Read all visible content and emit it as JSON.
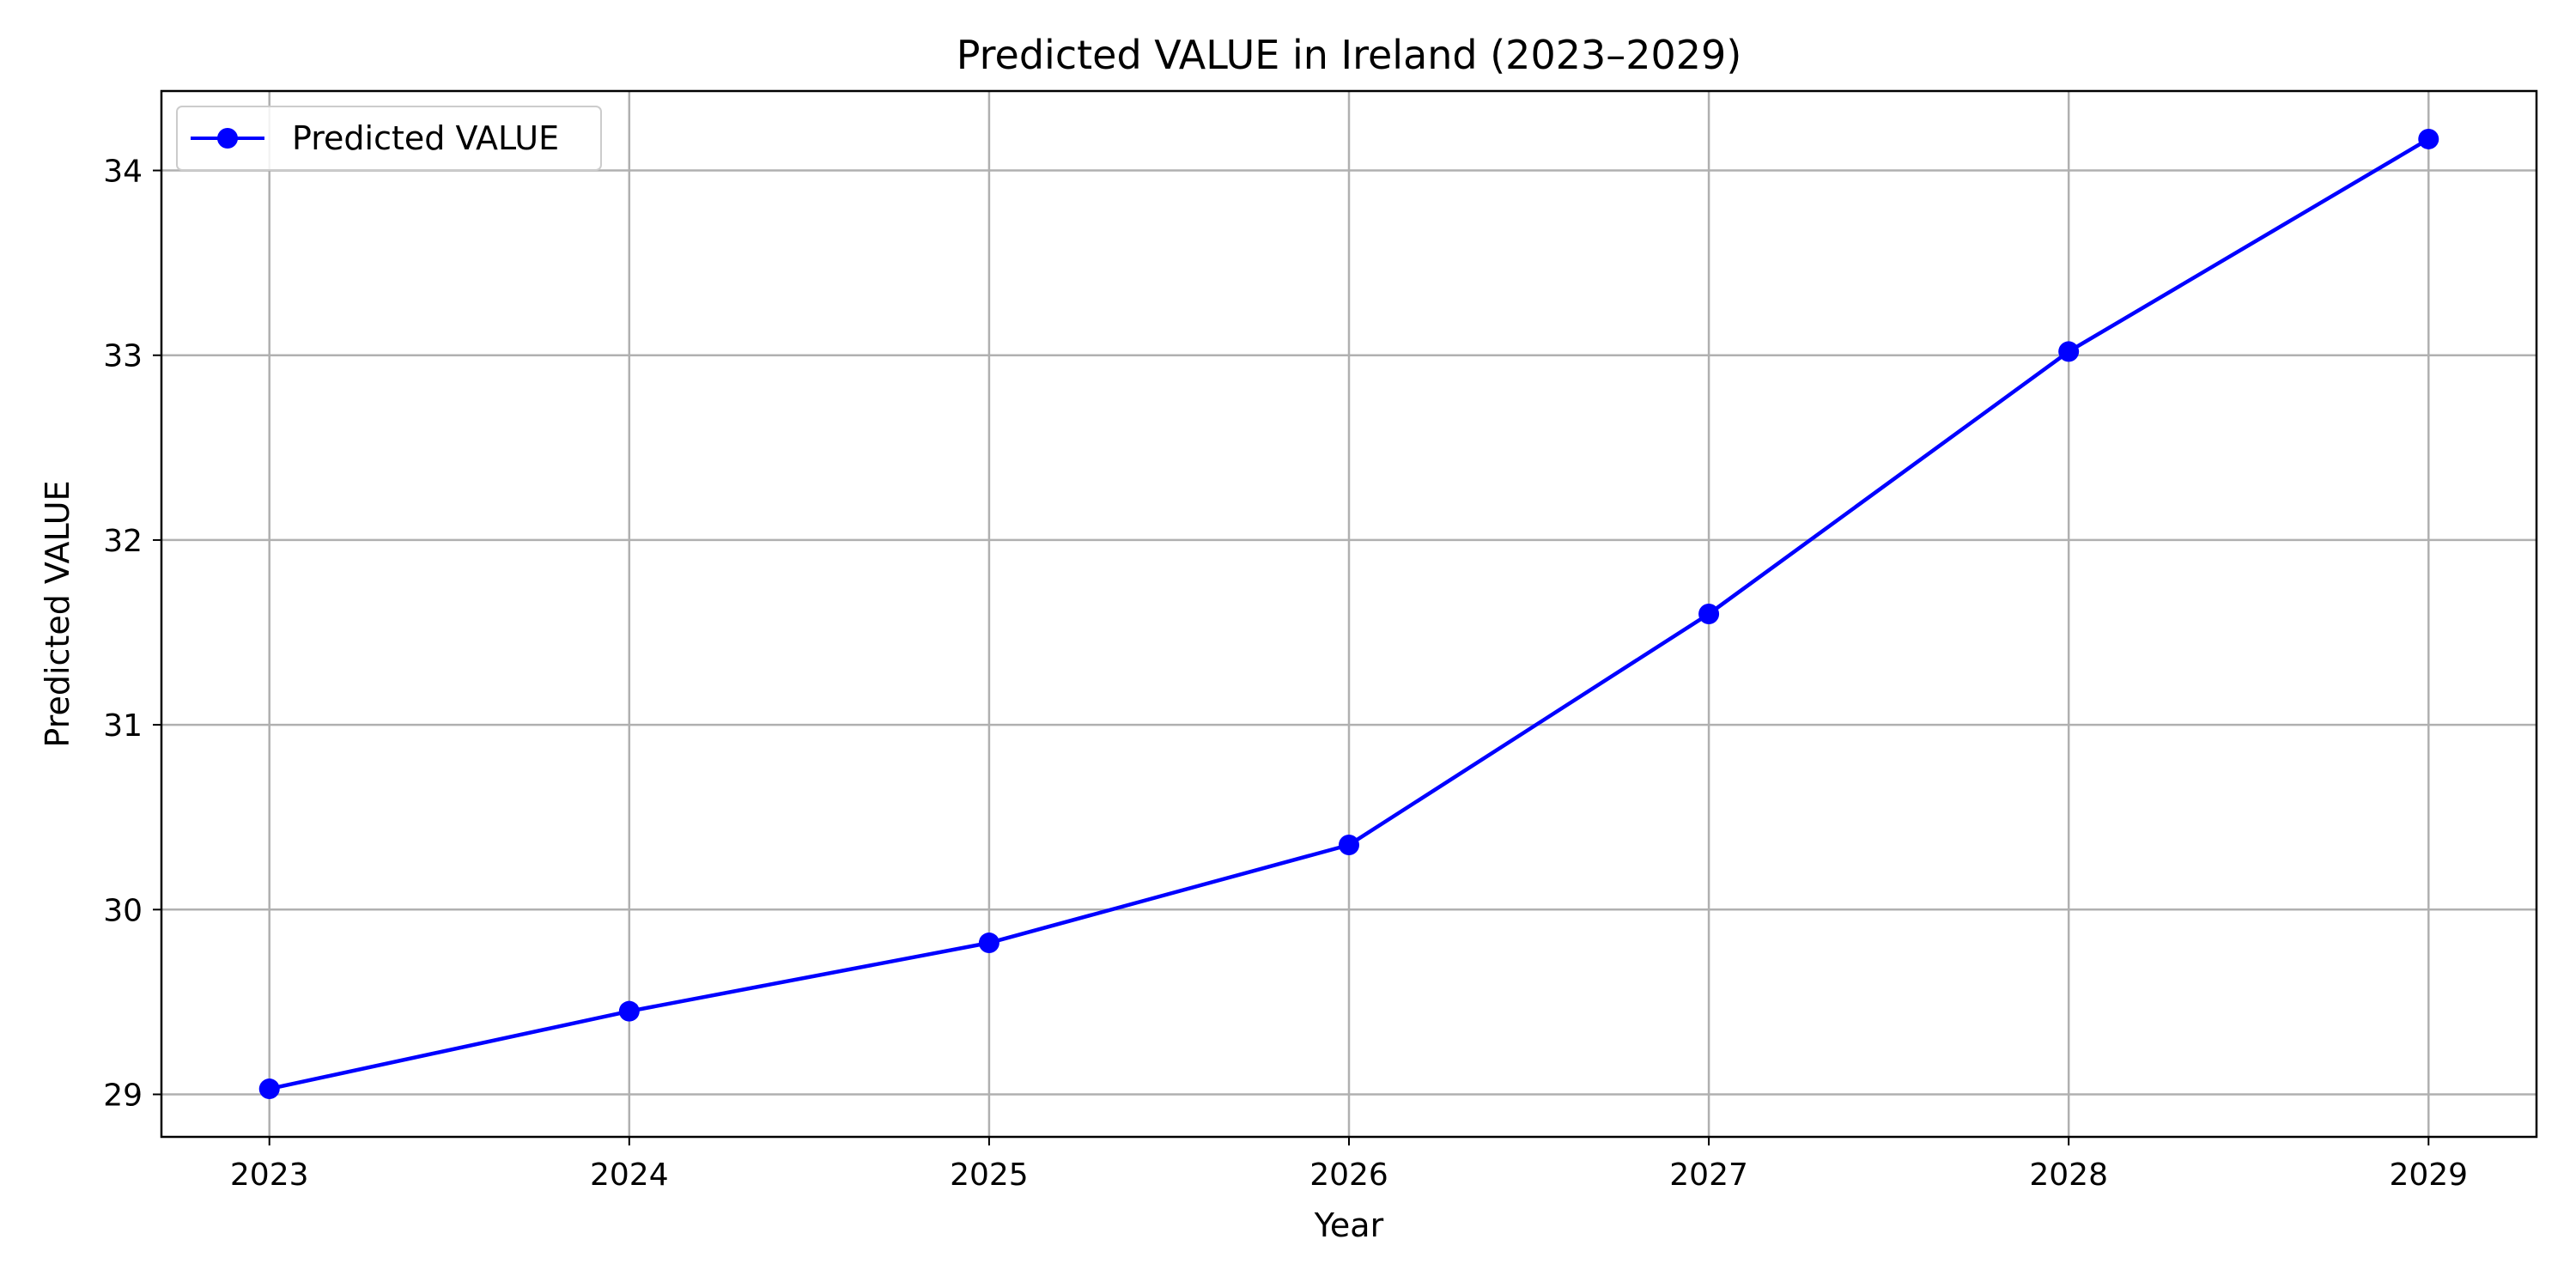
{
  "chart_data": {
    "type": "line",
    "title": "Predicted VALUE in Ireland (2023–2029)",
    "xlabel": "Year",
    "ylabel": "Predicted VALUE",
    "x": [
      2023,
      2024,
      2025,
      2026,
      2027,
      2028,
      2029
    ],
    "xticks": [
      "2023",
      "2024",
      "2025",
      "2026",
      "2027",
      "2028",
      "2029"
    ],
    "yticks": [
      29,
      30,
      31,
      32,
      33,
      34
    ],
    "xlim": [
      2022.7,
      2029.3
    ],
    "ylim": [
      28.77,
      34.43
    ],
    "series": [
      {
        "name": "Predicted VALUE",
        "color": "#0000ff",
        "marker": "circle",
        "values": [
          29.03,
          29.45,
          29.82,
          30.35,
          31.6,
          33.02,
          34.17
        ]
      }
    ],
    "grid": true,
    "legend_position": "top-left"
  }
}
